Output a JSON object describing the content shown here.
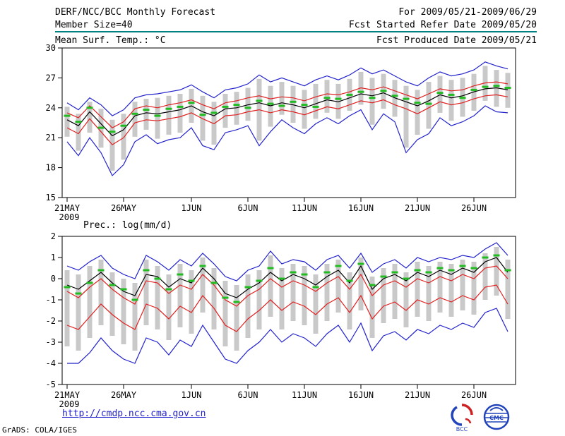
{
  "header": {
    "title": "DERF/NCC/BCC Monthly Forecast",
    "member_size": "Member Size=40",
    "for_range": "For 2009/05/21-2009/06/29",
    "fcst_started": "Fcst Started Refer Date 2009/05/20",
    "fcst_produced": "Fcst Produced Date 2009/05/21"
  },
  "footer": {
    "link": "http://cmdp.ncc.cma.gov.cn",
    "credit": "GrADS: COLA/IGES",
    "logos": [
      "BCC",
      "CMC"
    ]
  },
  "colors": {
    "header_rule": "#008080",
    "link": "#2222cc",
    "mean_line": "#000000",
    "quartile_line": "#e02020",
    "extreme_line": "#2222cc",
    "median_dash": "#22bb22",
    "spread_bar": "#c9c9c9"
  },
  "chart_data": [
    {
      "type": "line",
      "name": "surface-temperature",
      "title": "Mean Surf. Temp.: °C",
      "ylim": [
        15,
        30
      ],
      "yticks": [
        15,
        18,
        21,
        24,
        27,
        30
      ],
      "xtick_labels": [
        "21MAY",
        "26MAY",
        "1JUN",
        "6JUN",
        "11JUN",
        "16JUN",
        "21JUN",
        "26JUN"
      ],
      "xtick_days": [
        0,
        5,
        11,
        16,
        21,
        26,
        31,
        36
      ],
      "x_year_label": "2009",
      "n_days": 40,
      "legend": "off",
      "grid": "off",
      "series": [
        {
          "name": "max",
          "color": "#2222cc",
          "style": "line",
          "values": [
            24.5,
            23.8,
            25.0,
            24.3,
            23.2,
            23.8,
            25.0,
            25.3,
            25.4,
            25.6,
            25.8,
            26.3,
            25.6,
            25.0,
            25.8,
            26.0,
            26.4,
            27.3,
            26.6,
            27.0,
            26.6,
            26.2,
            26.8,
            27.2,
            26.8,
            27.3,
            28.0,
            27.4,
            27.8,
            27.2,
            26.6,
            26.2,
            27.0,
            27.6,
            27.2,
            27.4,
            27.8,
            28.6,
            28.2,
            27.9
          ]
        },
        {
          "name": "min",
          "color": "#2222cc",
          "style": "line",
          "values": [
            20.6,
            19.2,
            21.0,
            19.5,
            17.2,
            18.3,
            20.6,
            21.3,
            20.4,
            20.8,
            21.0,
            22.0,
            20.2,
            19.8,
            21.5,
            21.8,
            22.2,
            20.2,
            21.6,
            22.8,
            22.0,
            21.4,
            22.4,
            23.0,
            22.4,
            23.2,
            23.8,
            21.8,
            23.4,
            22.6,
            19.5,
            20.8,
            21.4,
            23.0,
            22.2,
            22.6,
            23.2,
            24.2,
            23.6,
            23.5
          ]
        },
        {
          "name": "upper-quartile",
          "color": "#e02020",
          "style": "line",
          "values": [
            23.5,
            23.0,
            24.2,
            23.1,
            22.0,
            22.6,
            23.9,
            24.2,
            24.0,
            24.3,
            24.5,
            24.8,
            24.3,
            23.9,
            24.5,
            24.7,
            25.0,
            25.2,
            24.9,
            25.1,
            25.0,
            24.7,
            25.1,
            25.4,
            25.3,
            25.6,
            26.0,
            25.8,
            26.1,
            25.7,
            25.3,
            24.9,
            25.4,
            25.9,
            25.7,
            25.8,
            26.2,
            26.5,
            26.6,
            26.4
          ]
        },
        {
          "name": "lower-quartile",
          "color": "#e02020",
          "style": "line",
          "values": [
            22.0,
            21.4,
            22.9,
            21.6,
            20.3,
            21.0,
            22.5,
            22.8,
            22.7,
            22.9,
            23.1,
            23.5,
            22.9,
            22.4,
            23.2,
            23.3,
            23.6,
            23.8,
            23.5,
            23.8,
            23.6,
            23.3,
            23.7,
            24.1,
            23.9,
            24.3,
            24.7,
            24.5,
            24.8,
            24.3,
            23.9,
            23.4,
            24.0,
            24.6,
            24.3,
            24.5,
            24.9,
            25.2,
            25.3,
            25.1
          ]
        },
        {
          "name": "ensemble-mean",
          "color": "#000000",
          "style": "line",
          "values": [
            22.8,
            22.2,
            23.6,
            22.4,
            21.2,
            21.8,
            23.2,
            23.5,
            23.4,
            23.6,
            23.8,
            24.2,
            23.6,
            23.2,
            23.9,
            24.0,
            24.3,
            24.5,
            24.2,
            24.5,
            24.3,
            24.0,
            24.4,
            24.8,
            24.6,
            25.0,
            25.4,
            25.2,
            25.5,
            25.0,
            24.6,
            24.2,
            24.7,
            25.3,
            25.0,
            25.2,
            25.6,
            25.9,
            26.0,
            25.8
          ]
        },
        {
          "name": "median",
          "color": "#22bb22",
          "style": "dashes",
          "values": [
            23.2,
            22.6,
            24.0,
            22.0,
            21.6,
            22.2,
            23.4,
            23.8,
            23.2,
            23.9,
            24.1,
            24.5,
            23.3,
            23.5,
            24.1,
            24.3,
            24.0,
            24.7,
            24.4,
            24.2,
            24.6,
            24.3,
            24.1,
            25.0,
            24.9,
            25.3,
            25.6,
            25.0,
            25.7,
            25.2,
            24.9,
            24.5,
            24.4,
            25.5,
            25.3,
            25.0,
            25.8,
            26.1,
            26.2,
            26.0
          ]
        }
      ],
      "bars": {
        "name": "ensemble-spread",
        "color": "#c9c9c9",
        "top": [
          24.1,
          23.4,
          24.6,
          23.9,
          22.8,
          23.4,
          24.6,
          24.9,
          25.0,
          25.2,
          25.4,
          25.9,
          25.2,
          24.6,
          25.4,
          25.6,
          26.0,
          26.9,
          26.2,
          26.6,
          26.2,
          25.8,
          26.4,
          26.8,
          26.4,
          26.9,
          27.6,
          27.0,
          27.4,
          26.8,
          26.2,
          25.8,
          26.6,
          27.2,
          26.8,
          27.0,
          27.4,
          28.2,
          27.8,
          27.5
        ],
        "bottom": [
          21.1,
          19.7,
          21.5,
          20.0,
          17.7,
          18.8,
          21.1,
          21.8,
          20.9,
          21.3,
          21.5,
          22.5,
          20.7,
          20.3,
          22.0,
          22.3,
          22.7,
          20.7,
          22.1,
          23.3,
          22.5,
          21.9,
          22.9,
          23.5,
          22.9,
          23.7,
          24.3,
          22.3,
          23.9,
          23.1,
          20.0,
          21.3,
          21.9,
          23.5,
          22.7,
          23.1,
          23.7,
          24.7,
          24.1,
          24.0
        ]
      }
    },
    {
      "type": "line",
      "name": "precipitation",
      "title": "Prec.: log(mm/d)",
      "ylim": [
        -5,
        2
      ],
      "yticks": [
        -5,
        -4,
        -3,
        -2,
        -1,
        0,
        1,
        2
      ],
      "xtick_labels": [
        "21MAY",
        "26MAY",
        "1JUN",
        "6JUN",
        "11JUN",
        "16JUN",
        "21JUN",
        "26JUN"
      ],
      "xtick_days": [
        0,
        5,
        11,
        16,
        21,
        26,
        31,
        36
      ],
      "x_year_label": "2009",
      "n_days": 40,
      "legend": "off",
      "grid": "off",
      "series": [
        {
          "name": "max",
          "color": "#2222cc",
          "style": "line",
          "values": [
            0.6,
            0.4,
            0.8,
            1.1,
            0.5,
            0.2,
            0.0,
            1.1,
            0.8,
            0.4,
            0.9,
            0.6,
            1.2,
            0.7,
            0.1,
            -0.1,
            0.4,
            0.6,
            1.3,
            0.7,
            0.9,
            0.8,
            0.4,
            0.9,
            1.1,
            0.5,
            1.2,
            0.3,
            0.7,
            0.9,
            0.5,
            1.0,
            0.8,
            1.0,
            0.9,
            1.1,
            1.0,
            1.4,
            1.7,
            1.1
          ]
        },
        {
          "name": "min",
          "color": "#2222cc",
          "style": "line",
          "values": [
            -4.0,
            -4.0,
            -3.5,
            -2.8,
            -3.4,
            -3.8,
            -4.0,
            -2.8,
            -3.0,
            -3.6,
            -2.9,
            -3.2,
            -2.2,
            -3.0,
            -3.8,
            -4.0,
            -3.4,
            -3.0,
            -2.4,
            -3.0,
            -2.6,
            -2.8,
            -3.2,
            -2.6,
            -2.2,
            -3.0,
            -2.1,
            -3.4,
            -2.7,
            -2.5,
            -2.9,
            -2.4,
            -2.6,
            -2.2,
            -2.4,
            -2.1,
            -2.3,
            -1.6,
            -1.4,
            -2.5
          ]
        },
        {
          "name": "upper-quartile",
          "color": "#e02020",
          "style": "line",
          "values": [
            -0.6,
            -0.9,
            -0.4,
            0.0,
            -0.5,
            -0.9,
            -1.2,
            -0.1,
            -0.2,
            -0.7,
            -0.3,
            -0.5,
            0.2,
            -0.3,
            -1.0,
            -1.3,
            -0.8,
            -0.5,
            0.0,
            -0.4,
            -0.1,
            -0.3,
            -0.6,
            -0.2,
            0.1,
            -0.5,
            0.2,
            -0.8,
            -0.3,
            -0.1,
            -0.4,
            0.0,
            -0.2,
            0.1,
            -0.1,
            0.2,
            0.0,
            0.5,
            0.6,
            0.0
          ]
        },
        {
          "name": "lower-quartile",
          "color": "#e02020",
          "style": "line",
          "values": [
            -2.2,
            -2.4,
            -1.8,
            -1.2,
            -1.7,
            -2.1,
            -2.4,
            -1.2,
            -1.4,
            -1.9,
            -1.3,
            -1.6,
            -0.8,
            -1.4,
            -2.2,
            -2.5,
            -1.9,
            -1.5,
            -1.0,
            -1.5,
            -1.1,
            -1.3,
            -1.7,
            -1.2,
            -0.9,
            -1.6,
            -0.8,
            -1.9,
            -1.3,
            -1.1,
            -1.5,
            -1.0,
            -1.2,
            -0.9,
            -1.1,
            -0.8,
            -1.0,
            -0.4,
            -0.3,
            -1.2
          ]
        },
        {
          "name": "ensemble-mean",
          "color": "#000000",
          "style": "line",
          "values": [
            -0.3,
            -0.5,
            -0.1,
            0.3,
            -0.2,
            -0.6,
            -0.8,
            0.2,
            0.1,
            -0.4,
            0.0,
            -0.2,
            0.5,
            0.0,
            -0.7,
            -0.9,
            -0.5,
            -0.2,
            0.3,
            -0.1,
            0.2,
            0.0,
            -0.3,
            0.1,
            0.4,
            -0.2,
            0.6,
            -0.5,
            0.0,
            0.2,
            -0.1,
            0.3,
            0.1,
            0.4,
            0.2,
            0.5,
            0.3,
            0.8,
            1.0,
            0.3
          ]
        },
        {
          "name": "median",
          "color": "#22bb22",
          "style": "dashes",
          "values": [
            -0.4,
            -0.7,
            -0.2,
            0.4,
            -0.3,
            -0.5,
            -1.0,
            0.4,
            0.0,
            -0.5,
            0.2,
            -0.1,
            0.6,
            -0.2,
            -0.9,
            -1.1,
            -0.4,
            -0.1,
            0.5,
            0.0,
            0.3,
            0.2,
            -0.4,
            0.3,
            0.6,
            -0.1,
            0.7,
            -0.3,
            0.1,
            0.3,
            0.0,
            0.4,
            0.3,
            0.5,
            0.4,
            0.6,
            0.5,
            1.0,
            1.1,
            0.4
          ]
        }
      ],
      "bars": {
        "name": "ensemble-spread",
        "color": "#c9c9c9",
        "top": [
          0.4,
          0.2,
          0.6,
          0.9,
          0.3,
          0.0,
          -0.2,
          0.9,
          0.6,
          0.2,
          0.7,
          0.4,
          1.0,
          0.5,
          -0.1,
          -0.3,
          0.2,
          0.4,
          1.1,
          0.5,
          0.7,
          0.6,
          0.2,
          0.7,
          0.9,
          0.3,
          1.0,
          0.1,
          0.5,
          0.7,
          0.3,
          0.8,
          0.6,
          0.8,
          0.7,
          0.9,
          0.8,
          1.2,
          1.5,
          0.9
        ],
        "bottom": [
          -3.2,
          -3.4,
          -2.8,
          -2.2,
          -2.7,
          -3.1,
          -3.4,
          -2.2,
          -2.4,
          -2.9,
          -2.3,
          -2.6,
          -1.6,
          -2.4,
          -3.2,
          -3.4,
          -2.8,
          -2.4,
          -1.8,
          -2.4,
          -2.0,
          -2.2,
          -2.6,
          -2.0,
          -1.6,
          -2.4,
          -1.5,
          -2.8,
          -2.1,
          -1.9,
          -2.3,
          -1.8,
          -2.0,
          -1.6,
          -1.8,
          -1.5,
          -1.7,
          -1.0,
          -0.8,
          -1.9
        ]
      }
    }
  ]
}
